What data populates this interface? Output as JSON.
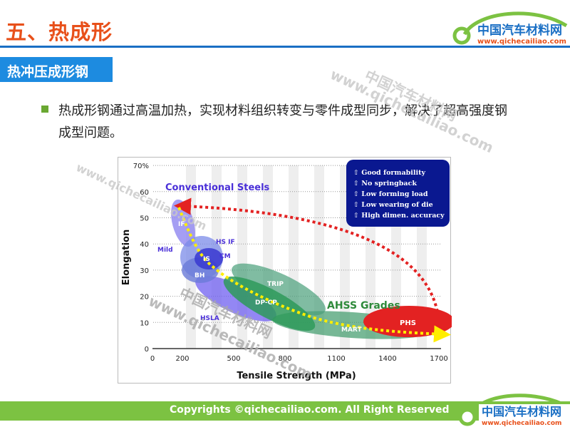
{
  "header": {
    "title": "五、热成形",
    "logo_cn": "中国汽车材料网",
    "logo_url": "www.qichecailiao.com"
  },
  "section": {
    "label": "热冲压成形钢"
  },
  "bullet": {
    "text": "热成形钢通过高温加热，实现材料组织转变与零件成型同步，解决了超高强度钢成型问题。"
  },
  "watermark": {
    "cn": "中国汽车材料网",
    "url": "www.qichecailiao.com"
  },
  "chart_data": {
    "type": "scatter",
    "xlabel": "Tensile Strength (MPa)",
    "ylabel": "Elongation",
    "x_ticks": [
      "0",
      "200",
      "500",
      "800",
      "1100",
      "1400",
      "1700"
    ],
    "y_ticks": [
      "0",
      "10",
      "20",
      "30",
      "40",
      "50",
      "60",
      "70%"
    ],
    "xlim": [
      0,
      1700
    ],
    "ylim": [
      0,
      70
    ],
    "group_labels": {
      "conventional": "Conventional Steels",
      "ahss": "AHSS Grades"
    },
    "regions": [
      {
        "name": "IF",
        "label": "IF"
      },
      {
        "name": "Mild",
        "label": "Mild"
      },
      {
        "name": "IS",
        "label": "IS"
      },
      {
        "name": "HS IF",
        "label": "HS IF"
      },
      {
        "name": "CM",
        "label": "CM"
      },
      {
        "name": "BH",
        "label": "BH"
      },
      {
        "name": "HSLA",
        "label": "HSLA"
      },
      {
        "name": "TRIP",
        "label": "TRIP"
      },
      {
        "name": "DP-CP",
        "label": "DP-CP"
      },
      {
        "name": "MART",
        "label": "MART"
      },
      {
        "name": "PHS",
        "label": "PHS"
      }
    ],
    "benefits": [
      "⇧ Good formability",
      "⇧ No springback",
      "⇧ Low forming load",
      "⇧ Low wearing of die",
      "⇧ High dimen. accuracy"
    ],
    "colors": {
      "conventional": "#5b4fe0",
      "ahss": "#2e9a5a",
      "phs": "#e32222",
      "box": "#0a1890"
    }
  },
  "footer": {
    "copyright": "Copyrights ©qichecailiao.com. All Right Reserved"
  }
}
